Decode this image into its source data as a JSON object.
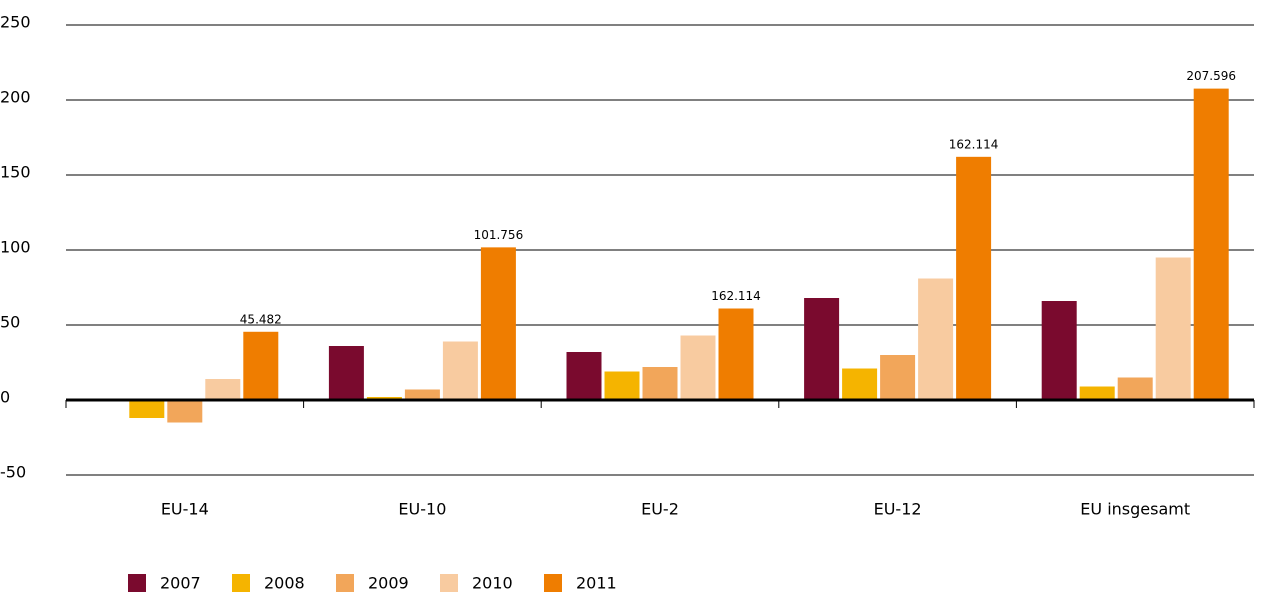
{
  "chart_data": {
    "type": "bar",
    "categories": [
      "EU-14",
      "EU-10",
      "EU-2",
      "EU-12",
      "EU insgesamt"
    ],
    "series": [
      {
        "name": "2007",
        "color": "#7a0a2e",
        "values": [
          -1,
          36,
          32,
          68,
          66
        ]
      },
      {
        "name": "2008",
        "color": "#f5b400",
        "values": [
          -12,
          2,
          19,
          21,
          9
        ]
      },
      {
        "name": "2009",
        "color": "#f2a65a",
        "values": [
          -15,
          7,
          22,
          30,
          15
        ]
      },
      {
        "name": "2010",
        "color": "#f8cba0",
        "values": [
          14,
          39,
          43,
          81,
          95
        ]
      },
      {
        "name": "2011",
        "color": "#ef7d00",
        "values": [
          45.482,
          101.756,
          61,
          162.114,
          207.596
        ],
        "value_labels": [
          "45.482",
          "101.756",
          null,
          "162.114",
          "207.596"
        ]
      }
    ],
    "annotations": [
      {
        "text": "162.114",
        "category": "EU-2"
      }
    ],
    "ylim": [
      -50,
      250
    ],
    "yticks": [
      -50,
      0,
      50,
      100,
      150,
      200,
      250
    ],
    "grid": true,
    "legend": "bottom"
  }
}
